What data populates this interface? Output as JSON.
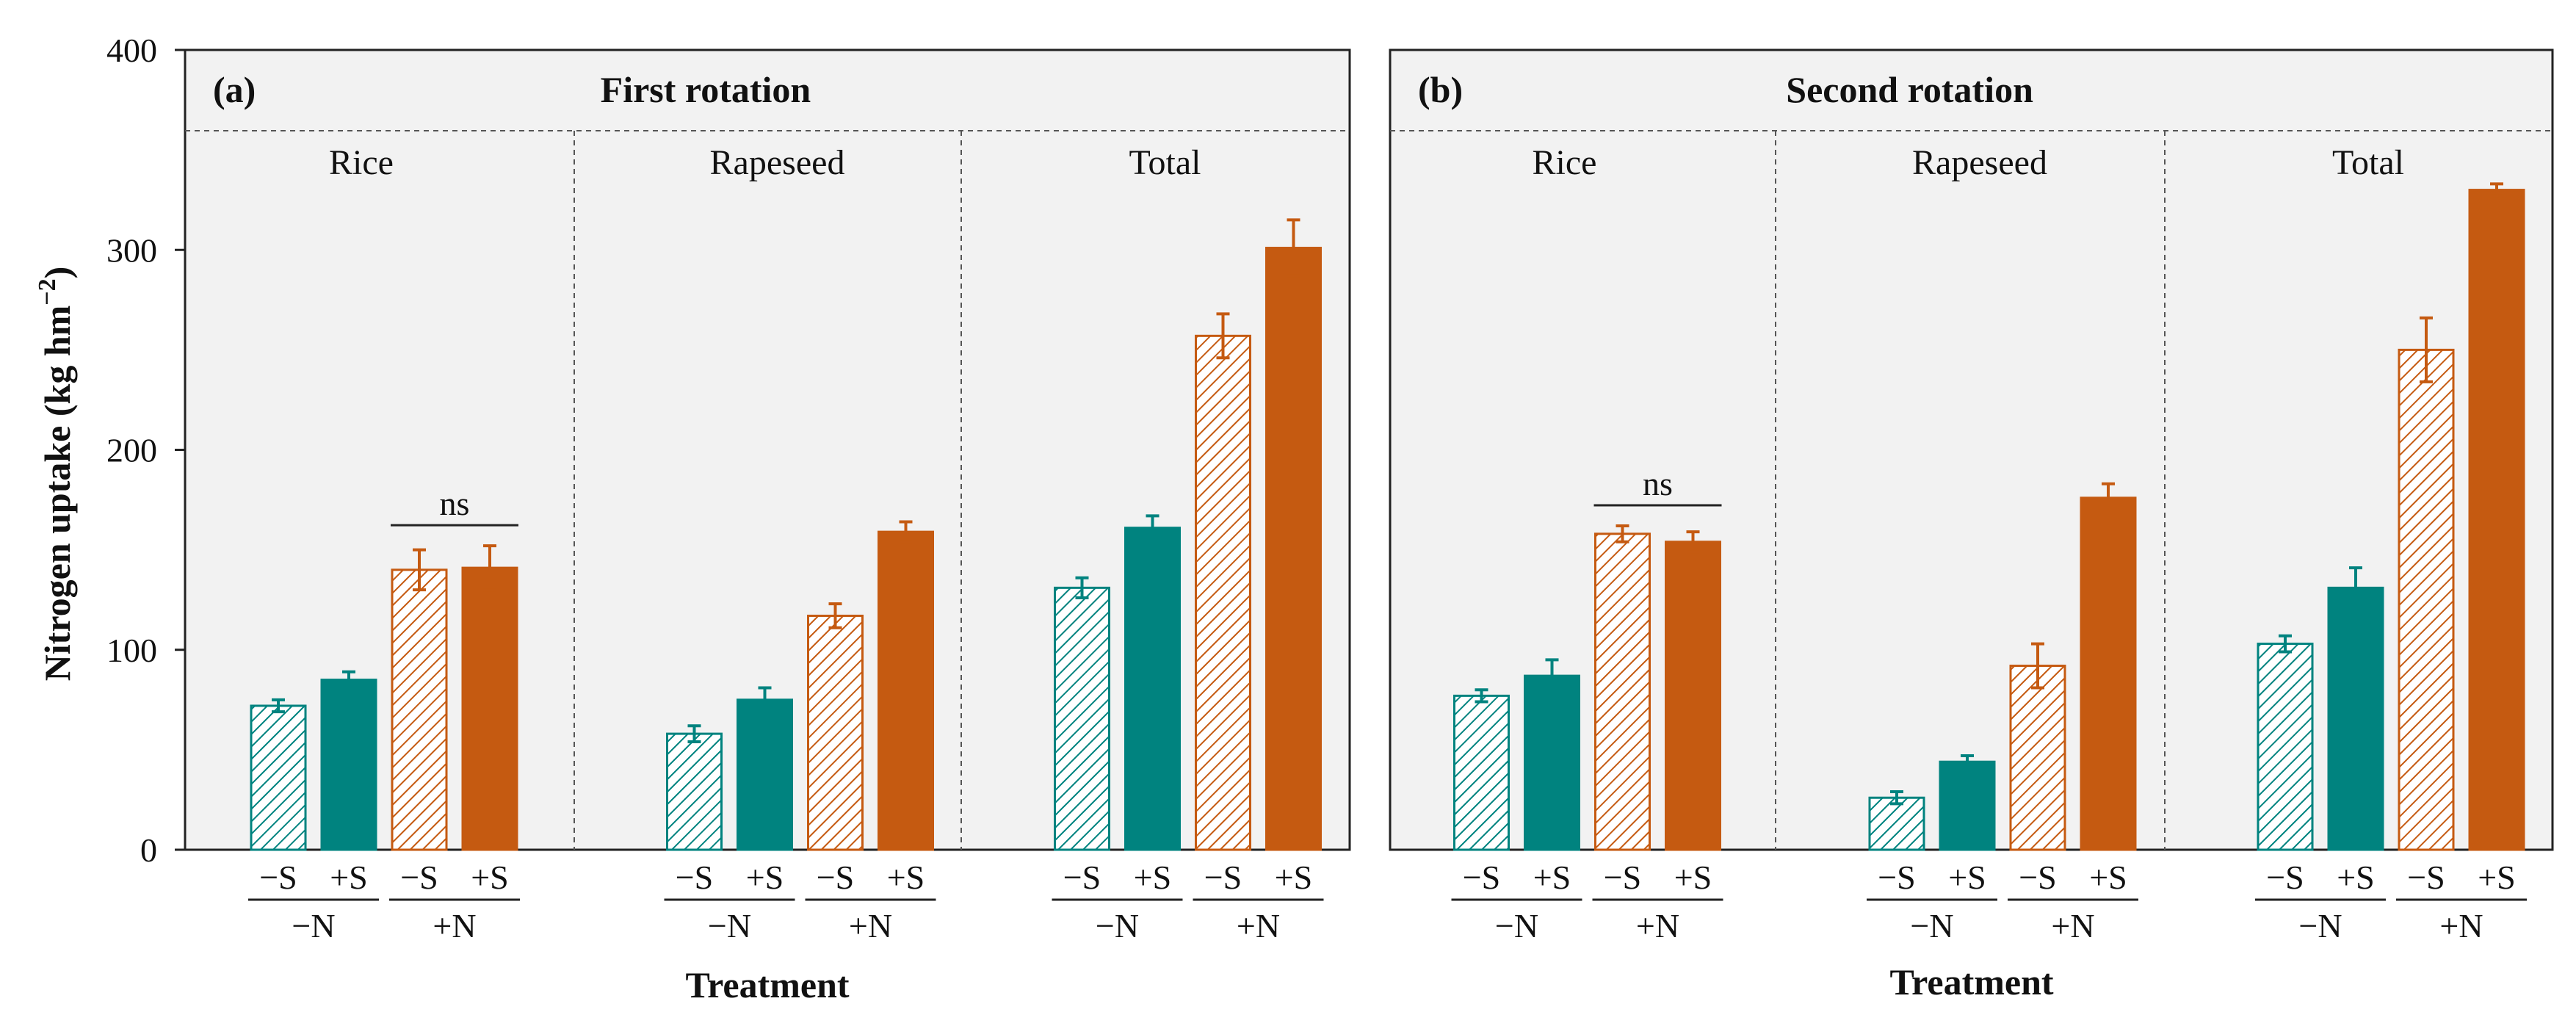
{
  "chart_data": {
    "type": "bar",
    "ylabel": "Nitrogen uptake (kg hm",
    "ylabel_sup": "−2",
    "ylabel_close": ")",
    "ylim": [
      0,
      400
    ],
    "yticks": [
      0,
      100,
      200,
      300,
      400
    ],
    "xlabel": "Treatment",
    "ns_text": "ns",
    "s_levels": [
      "−S",
      "+S"
    ],
    "n_levels": [
      "−N",
      "+N"
    ],
    "colors": {
      "minus_n": "#00837f",
      "plus_n": "#c55a11"
    },
    "panels": [
      {
        "tag": "(a)",
        "title": "First rotation",
        "groups": [
          {
            "name": "Rice",
            "values": [
              72,
              85,
              140,
              141
            ],
            "errors": [
              3,
              4,
              10,
              11
            ],
            "ns": true
          },
          {
            "name": "Rapeseed",
            "values": [
              58,
              75,
              117,
              159
            ],
            "errors": [
              4,
              6,
              6,
              5
            ],
            "ns": false
          },
          {
            "name": "Total",
            "values": [
              131,
              161,
              257,
              301
            ],
            "errors": [
              5,
              6,
              11,
              14
            ],
            "ns": false
          }
        ]
      },
      {
        "tag": "(b)",
        "title": "Second rotation",
        "groups": [
          {
            "name": "Rice",
            "values": [
              77,
              87,
              158,
              154
            ],
            "errors": [
              3,
              8,
              4,
              5
            ],
            "ns": true
          },
          {
            "name": "Rapeseed",
            "values": [
              26,
              44,
              92,
              176
            ],
            "errors": [
              3,
              3,
              11,
              7
            ],
            "ns": false
          },
          {
            "name": "Total",
            "values": [
              103,
              131,
              250,
              330
            ],
            "errors": [
              4,
              10,
              16,
              3
            ],
            "ns": false
          }
        ]
      }
    ]
  }
}
